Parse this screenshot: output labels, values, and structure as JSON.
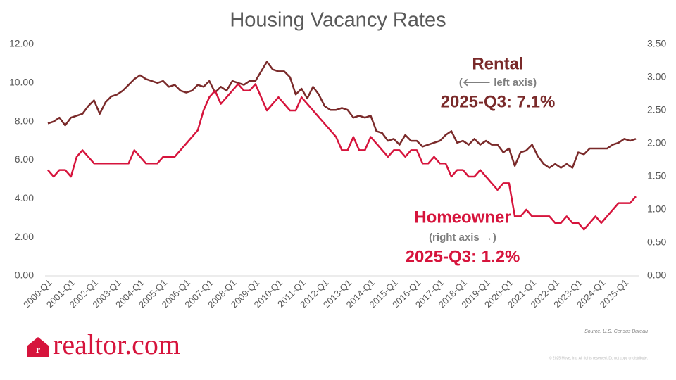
{
  "chart_data": {
    "type": "line",
    "title": "Housing Vacancy Rates",
    "categories": [
      "2000-Q1",
      null,
      null,
      null,
      "2001-Q1",
      null,
      null,
      null,
      "2002-Q1",
      null,
      null,
      null,
      "2003-Q1",
      null,
      null,
      null,
      "2004-Q1",
      null,
      null,
      null,
      "2005-Q1",
      null,
      null,
      null,
      "2006-Q1",
      null,
      null,
      null,
      "2007-Q1",
      null,
      null,
      null,
      "2008-Q1",
      null,
      null,
      null,
      "2009-Q1",
      null,
      null,
      null,
      "2010-Q1",
      null,
      null,
      null,
      "2011-Q1",
      null,
      null,
      null,
      "2012-Q1",
      null,
      null,
      null,
      "2013-Q1",
      null,
      null,
      null,
      "2014-Q1",
      null,
      null,
      null,
      "2015-Q1",
      null,
      null,
      null,
      "2016-Q1",
      null,
      null,
      null,
      "2017-Q1",
      null,
      null,
      null,
      "2018-Q1",
      null,
      null,
      null,
      "2019-Q1",
      null,
      null,
      null,
      "2020-Q1",
      null,
      null,
      null,
      "2021-Q1",
      null,
      null,
      null,
      "2022-Q1",
      null,
      null,
      null,
      "2023-Q1",
      null,
      null,
      null,
      "2024-Q1",
      null,
      null,
      null,
      "2025-Q1",
      null,
      null
    ],
    "series": [
      {
        "name": "Rental",
        "note": "(🡐 left axis)",
        "latest": "2025-Q3: 7.1%",
        "color": "#7a2a2a",
        "axis": "y",
        "values": [
          7.9,
          8.0,
          8.2,
          7.8,
          8.2,
          8.3,
          8.4,
          8.8,
          9.1,
          8.4,
          9.0,
          9.3,
          9.4,
          9.6,
          9.9,
          10.2,
          10.4,
          10.2,
          10.1,
          10.0,
          10.1,
          9.8,
          9.9,
          9.6,
          9.5,
          9.6,
          9.9,
          9.8,
          10.1,
          9.5,
          9.8,
          9.6,
          10.1,
          10.0,
          9.9,
          10.1,
          10.1,
          10.6,
          11.1,
          10.7,
          10.6,
          10.6,
          10.3,
          9.4,
          9.7,
          9.2,
          9.8,
          9.4,
          8.8,
          8.6,
          8.6,
          8.7,
          8.6,
          8.2,
          8.3,
          8.2,
          8.3,
          7.5,
          7.4,
          7.0,
          7.1,
          6.8,
          7.3,
          7.0,
          7.0,
          6.7,
          6.8,
          6.9,
          7.0,
          7.3,
          7.5,
          6.9,
          7.0,
          6.8,
          7.1,
          6.8,
          7.0,
          6.8,
          6.8,
          6.4,
          6.6,
          5.7,
          6.4,
          6.5,
          6.8,
          6.2,
          5.8,
          5.6,
          5.8,
          5.6,
          5.8,
          5.6,
          6.4,
          6.3,
          6.6,
          6.6,
          6.6,
          6.6,
          6.8,
          6.9,
          7.1,
          7.0,
          7.1
        ]
      },
      {
        "name": "Homeowner",
        "note": "(right axis →)",
        "latest": "2025-Q3: 1.2%",
        "color": "#d6143c",
        "axis": "y2",
        "values": [
          1.6,
          1.5,
          1.6,
          1.6,
          1.5,
          1.8,
          1.9,
          1.8,
          1.7,
          1.7,
          1.7,
          1.7,
          1.7,
          1.7,
          1.7,
          1.9,
          1.8,
          1.7,
          1.7,
          1.7,
          1.8,
          1.8,
          1.8,
          1.9,
          2.0,
          2.1,
          2.2,
          2.5,
          2.7,
          2.8,
          2.6,
          2.7,
          2.8,
          2.9,
          2.8,
          2.8,
          2.9,
          2.7,
          2.5,
          2.6,
          2.7,
          2.6,
          2.5,
          2.5,
          2.7,
          2.6,
          2.5,
          2.4,
          2.3,
          2.2,
          2.1,
          1.9,
          1.9,
          2.1,
          1.9,
          1.9,
          2.1,
          2.0,
          1.9,
          1.8,
          1.9,
          1.9,
          1.8,
          1.9,
          1.9,
          1.7,
          1.7,
          1.8,
          1.7,
          1.7,
          1.5,
          1.6,
          1.6,
          1.5,
          1.5,
          1.6,
          1.5,
          1.4,
          1.3,
          1.4,
          1.4,
          0.9,
          0.9,
          1.0,
          0.9,
          0.9,
          0.9,
          0.9,
          0.8,
          0.8,
          0.9,
          0.8,
          0.8,
          0.7,
          0.8,
          0.9,
          0.8,
          0.9,
          1.0,
          1.1,
          1.1,
          1.1,
          1.2
        ]
      }
    ],
    "ylim": [
      0,
      12
    ],
    "yticks": [
      {
        "value": 0,
        "label": "0.00"
      },
      {
        "value": 2,
        "label": "2.00"
      },
      {
        "value": 4,
        "label": "4.00"
      },
      {
        "value": 6,
        "label": "6.00"
      },
      {
        "value": 8,
        "label": "8.00"
      },
      {
        "value": 10,
        "label": "10.00"
      },
      {
        "value": 12,
        "label": "12.00"
      }
    ],
    "y2lim": [
      0,
      3.5
    ],
    "y2ticks": [
      {
        "value": 0,
        "label": "0.00"
      },
      {
        "value": 0.5,
        "label": "0.50"
      },
      {
        "value": 1,
        "label": "1.00"
      },
      {
        "value": 1.5,
        "label": "1.50"
      },
      {
        "value": 2,
        "label": "2.00"
      },
      {
        "value": 2.5,
        "label": "2.50"
      },
      {
        "value": 3,
        "label": "3.00"
      },
      {
        "value": 3.5,
        "label": "3.50"
      }
    ],
    "grid": false,
    "source": "Source: U.S. Census Bureau",
    "copyright": "© 2025 Move, Inc. All rights reserved. Do not copy or distribute.",
    "logo": "realtor.com"
  }
}
